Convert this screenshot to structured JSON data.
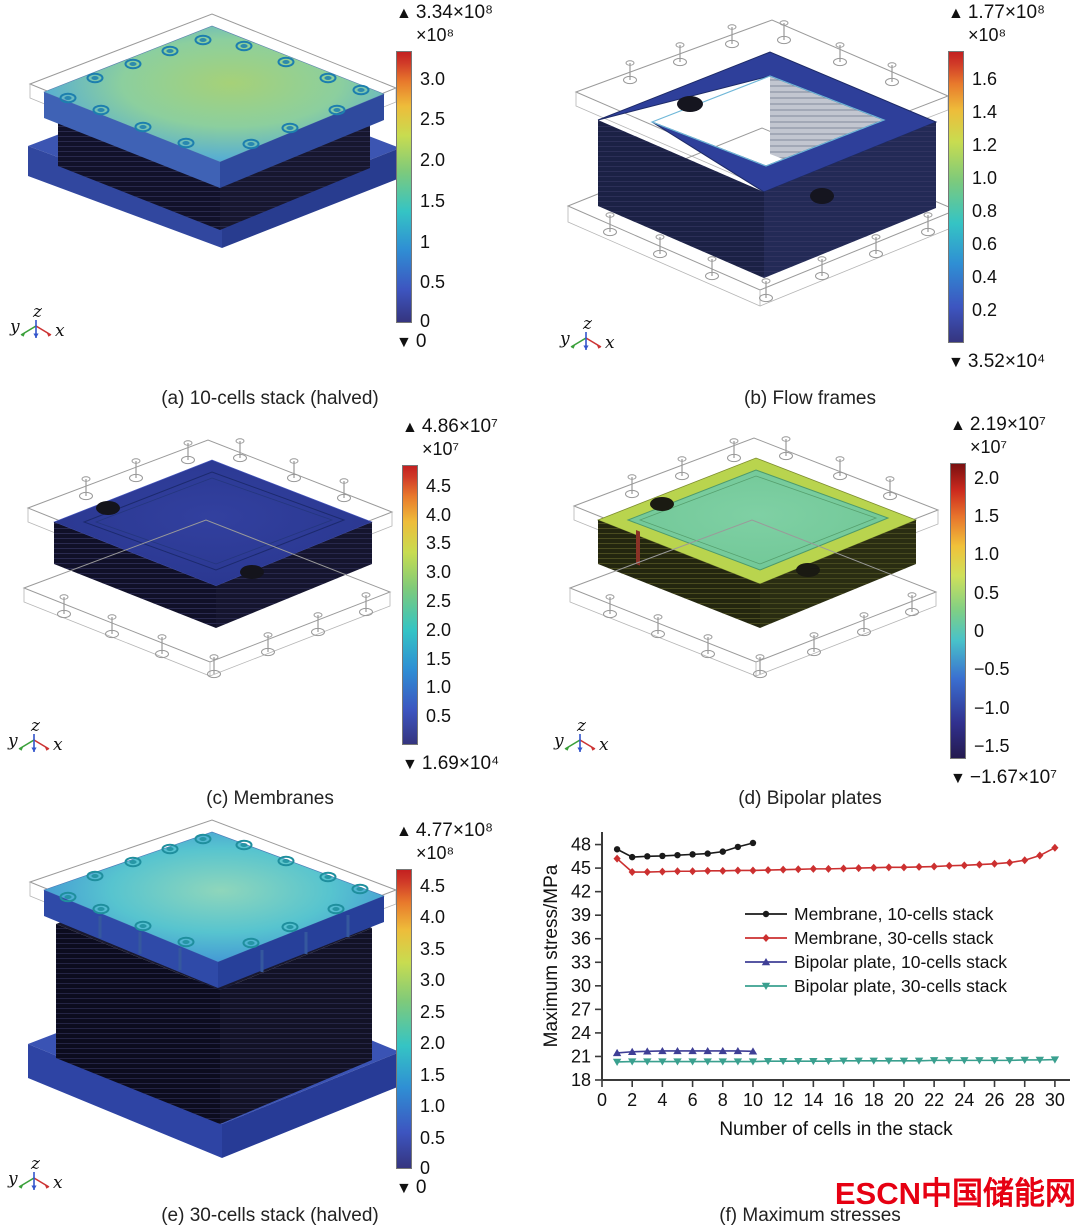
{
  "triad": {
    "x": "x",
    "y": "y",
    "z": "z"
  },
  "panels": {
    "a": {
      "caption": "(a) 10-cells stack (halved)",
      "colorbar": {
        "max_marker": "▲",
        "max_value": "3.34×10⁸",
        "unit": "×10⁸",
        "ticks": [
          {
            "t": "3.0",
            "v": 3.0
          },
          {
            "t": "2.5",
            "v": 2.5
          },
          {
            "t": "2.0",
            "v": 2.0
          },
          {
            "t": "1.5",
            "v": 1.5
          },
          {
            "t": "1",
            "v": 1.0
          },
          {
            "t": "0.5",
            "v": 0.5
          },
          {
            "t": "0",
            "v": 0.02
          }
        ],
        "range": {
          "min": 0,
          "max": 3.34
        },
        "min_marker": "▼",
        "min_value": "0"
      }
    },
    "b": {
      "caption": "(b) Flow frames",
      "colorbar": {
        "max_marker": "▲",
        "max_value": "1.77×10⁸",
        "unit": "×10⁸",
        "ticks": [
          {
            "t": "1.6",
            "v": 1.6
          },
          {
            "t": "1.4",
            "v": 1.4
          },
          {
            "t": "1.2",
            "v": 1.2
          },
          {
            "t": "1.0",
            "v": 1.0
          },
          {
            "t": "0.8",
            "v": 0.8
          },
          {
            "t": "0.6",
            "v": 0.6
          },
          {
            "t": "0.4",
            "v": 0.4
          },
          {
            "t": "0.2",
            "v": 0.2
          }
        ],
        "range": {
          "min": 0,
          "max": 1.77
        },
        "min_marker": "▼",
        "min_value": "3.52×10⁴"
      }
    },
    "c": {
      "caption": "(c) Membranes",
      "colorbar": {
        "max_marker": "▲",
        "max_value": "4.86×10⁷",
        "unit": "×10⁷",
        "ticks": [
          {
            "t": "4.5",
            "v": 4.5
          },
          {
            "t": "4.0",
            "v": 4.0
          },
          {
            "t": "3.5",
            "v": 3.5
          },
          {
            "t": "3.0",
            "v": 3.0
          },
          {
            "t": "2.5",
            "v": 2.5
          },
          {
            "t": "2.0",
            "v": 2.0
          },
          {
            "t": "1.5",
            "v": 1.5
          },
          {
            "t": "1.0",
            "v": 1.0
          },
          {
            "t": "0.5",
            "v": 0.5
          }
        ],
        "range": {
          "min": 0,
          "max": 4.86
        },
        "min_marker": "▼",
        "min_value": "1.69×10⁴"
      }
    },
    "d": {
      "caption": "(d) Bipolar plates",
      "colorbar": {
        "max_marker": "▲",
        "max_value": "2.19×10⁷",
        "unit": "×10⁷",
        "ticks": [
          {
            "t": "2.0",
            "v": 2.0
          },
          {
            "t": "1.5",
            "v": 1.5
          },
          {
            "t": "1.0",
            "v": 1.0
          },
          {
            "t": "0.5",
            "v": 0.5
          },
          {
            "t": "0",
            "v": 0
          },
          {
            "t": "−0.5",
            "v": -0.5
          },
          {
            "t": "−1.0",
            "v": -1.0
          },
          {
            "t": "−1.5",
            "v": -1.5
          }
        ],
        "range": {
          "min": -1.67,
          "max": 2.19
        },
        "min_marker": "▼",
        "min_value": "−1.67×10⁷"
      }
    },
    "e": {
      "caption": "(e) 30-cells stack (halved)",
      "colorbar": {
        "max_marker": "▲",
        "max_value": "4.77×10⁸",
        "unit": "×10⁸",
        "ticks": [
          {
            "t": "4.5",
            "v": 4.5
          },
          {
            "t": "4.0",
            "v": 4.0
          },
          {
            "t": "3.5",
            "v": 3.5
          },
          {
            "t": "3.0",
            "v": 3.0
          },
          {
            "t": "2.5",
            "v": 2.5
          },
          {
            "t": "2.0",
            "v": 2.0
          },
          {
            "t": "1.5",
            "v": 1.5
          },
          {
            "t": "1.0",
            "v": 1.0
          },
          {
            "t": "0.5",
            "v": 0.5
          },
          {
            "t": "0",
            "v": 0.02
          }
        ],
        "range": {
          "min": 0,
          "max": 4.77
        },
        "min_marker": "▼",
        "min_value": "0"
      }
    },
    "f": {
      "caption": "(f) Maximum stresses"
    }
  },
  "chart_data": {
    "type": "line",
    "xlabel": "Number of cells in the stack",
    "ylabel": "Maximum stress/MPa",
    "xlim": [
      0,
      31
    ],
    "ylim": [
      18,
      49.6
    ],
    "xticks": [
      0,
      2,
      4,
      6,
      8,
      10,
      12,
      14,
      16,
      18,
      20,
      22,
      24,
      26,
      28,
      30
    ],
    "yticks": [
      18,
      21,
      24,
      27,
      30,
      33,
      36,
      39,
      42,
      45,
      48
    ],
    "grid": false,
    "legend_position": "inside-center",
    "series": [
      {
        "name": "Membrane, 10-cells stack",
        "color": "#1a1a1a",
        "marker": "circle",
        "x": [
          1,
          2,
          3,
          4,
          5,
          6,
          7,
          8,
          9,
          10
        ],
        "y": [
          47.4,
          46.4,
          46.5,
          46.55,
          46.65,
          46.75,
          46.85,
          47.1,
          47.7,
          48.2
        ]
      },
      {
        "name": "Membrane, 30-cells stack",
        "color": "#cc3030",
        "marker": "diamond",
        "x": [
          1,
          2,
          3,
          4,
          5,
          6,
          7,
          8,
          9,
          10,
          11,
          12,
          13,
          14,
          15,
          16,
          17,
          18,
          19,
          20,
          21,
          22,
          23,
          24,
          25,
          26,
          27,
          28,
          29,
          30
        ],
        "y": [
          46.2,
          44.5,
          44.5,
          44.55,
          44.6,
          44.6,
          44.65,
          44.65,
          44.7,
          44.7,
          44.75,
          44.8,
          44.85,
          44.9,
          44.9,
          44.95,
          45.0,
          45.05,
          45.1,
          45.1,
          45.15,
          45.2,
          45.3,
          45.35,
          45.45,
          45.55,
          45.7,
          46.0,
          46.6,
          47.6
        ]
      },
      {
        "name": "Bipolar plate, 10-cells stack",
        "color": "#3f3f96",
        "marker": "triangle-up",
        "x": [
          1,
          2,
          3,
          4,
          5,
          6,
          7,
          8,
          9,
          10
        ],
        "y": [
          21.45,
          21.6,
          21.65,
          21.7,
          21.7,
          21.7,
          21.7,
          21.7,
          21.7,
          21.65
        ]
      },
      {
        "name": "Bipolar plate, 30-cells stack",
        "color": "#3aa08f",
        "marker": "triangle-down",
        "x": [
          1,
          2,
          3,
          4,
          5,
          6,
          7,
          8,
          9,
          10,
          11,
          12,
          13,
          14,
          15,
          16,
          17,
          18,
          19,
          20,
          21,
          22,
          23,
          24,
          25,
          26,
          27,
          28,
          29,
          30
        ],
        "y": [
          20.3,
          20.35,
          20.35,
          20.35,
          20.35,
          20.35,
          20.35,
          20.35,
          20.35,
          20.35,
          20.4,
          20.4,
          20.4,
          20.4,
          20.4,
          20.45,
          20.45,
          20.45,
          20.45,
          20.45,
          20.45,
          20.5,
          20.5,
          20.5,
          20.5,
          20.5,
          20.5,
          20.55,
          20.55,
          20.6
        ]
      }
    ]
  },
  "watermark": {
    "text": "ESCN中国储能网",
    "color": "#e60012"
  }
}
